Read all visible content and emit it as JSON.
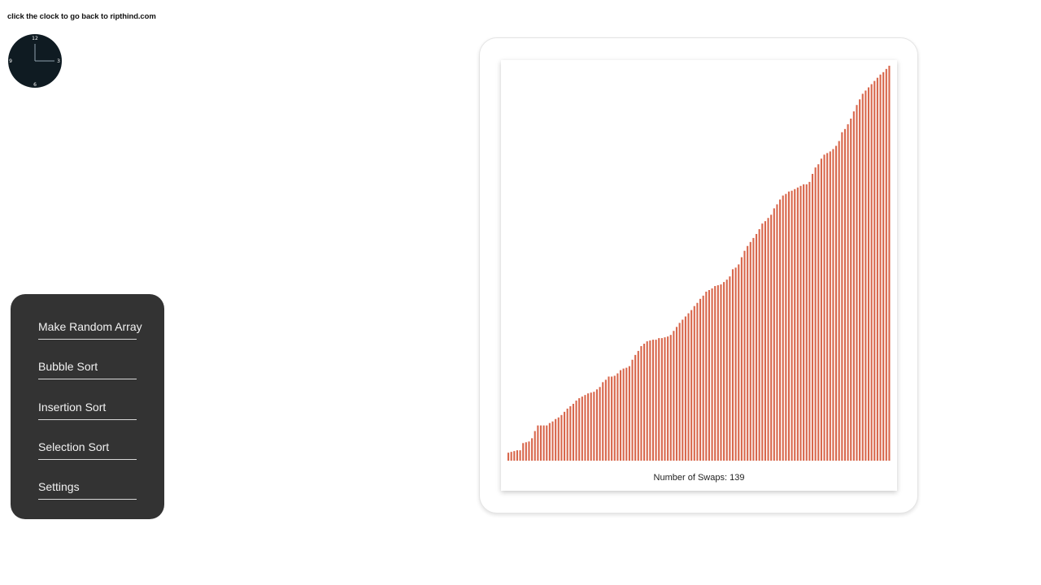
{
  "header": {
    "note": "click the clock to go back to ripthind.com"
  },
  "clock": {
    "labels": {
      "twelve": "12",
      "three": "3",
      "six": "6",
      "nine": "9"
    },
    "face_color": "#0f1b22",
    "hand_color": "#8fa2ad"
  },
  "menu": {
    "items": [
      {
        "label": "Make Random Array"
      },
      {
        "label": "Bubble Sort"
      },
      {
        "label": "Insertion Sort"
      },
      {
        "label": "Selection Sort"
      },
      {
        "label": "Settings"
      }
    ]
  },
  "visualizer": {
    "swaps_label": "Number of Swaps: 139",
    "bar_color": "#d8674c"
  },
  "chart_data": {
    "type": "bar",
    "values": [
      10,
      11,
      12,
      13,
      13,
      22,
      23,
      24,
      28,
      37,
      44,
      44,
      44,
      44,
      47,
      49,
      52,
      54,
      57,
      61,
      65,
      68,
      71,
      75,
      78,
      80,
      82,
      84,
      85,
      86,
      89,
      92,
      98,
      101,
      105,
      105,
      106,
      109,
      113,
      115,
      116,
      118,
      126,
      132,
      137,
      143,
      146,
      149,
      150,
      151,
      151,
      153,
      153,
      154,
      155,
      157,
      162,
      167,
      172,
      176,
      180,
      184,
      188,
      193,
      197,
      202,
      206,
      211,
      213,
      215,
      218,
      219,
      220,
      223,
      226,
      230,
      239,
      241,
      245,
      254,
      262,
      268,
      273,
      278,
      283,
      289,
      296,
      299,
      303,
      307,
      315,
      320,
      326,
      331,
      333,
      336,
      337,
      339,
      341,
      343,
      345,
      345,
      348,
      358,
      366,
      370,
      377,
      382,
      384,
      386,
      389,
      393,
      399,
      410,
      414,
      420,
      427,
      436,
      444,
      451,
      458,
      462,
      466,
      470,
      474,
      478,
      482,
      485,
      489,
      493
    ],
    "ylim": [
      0,
      500
    ]
  }
}
